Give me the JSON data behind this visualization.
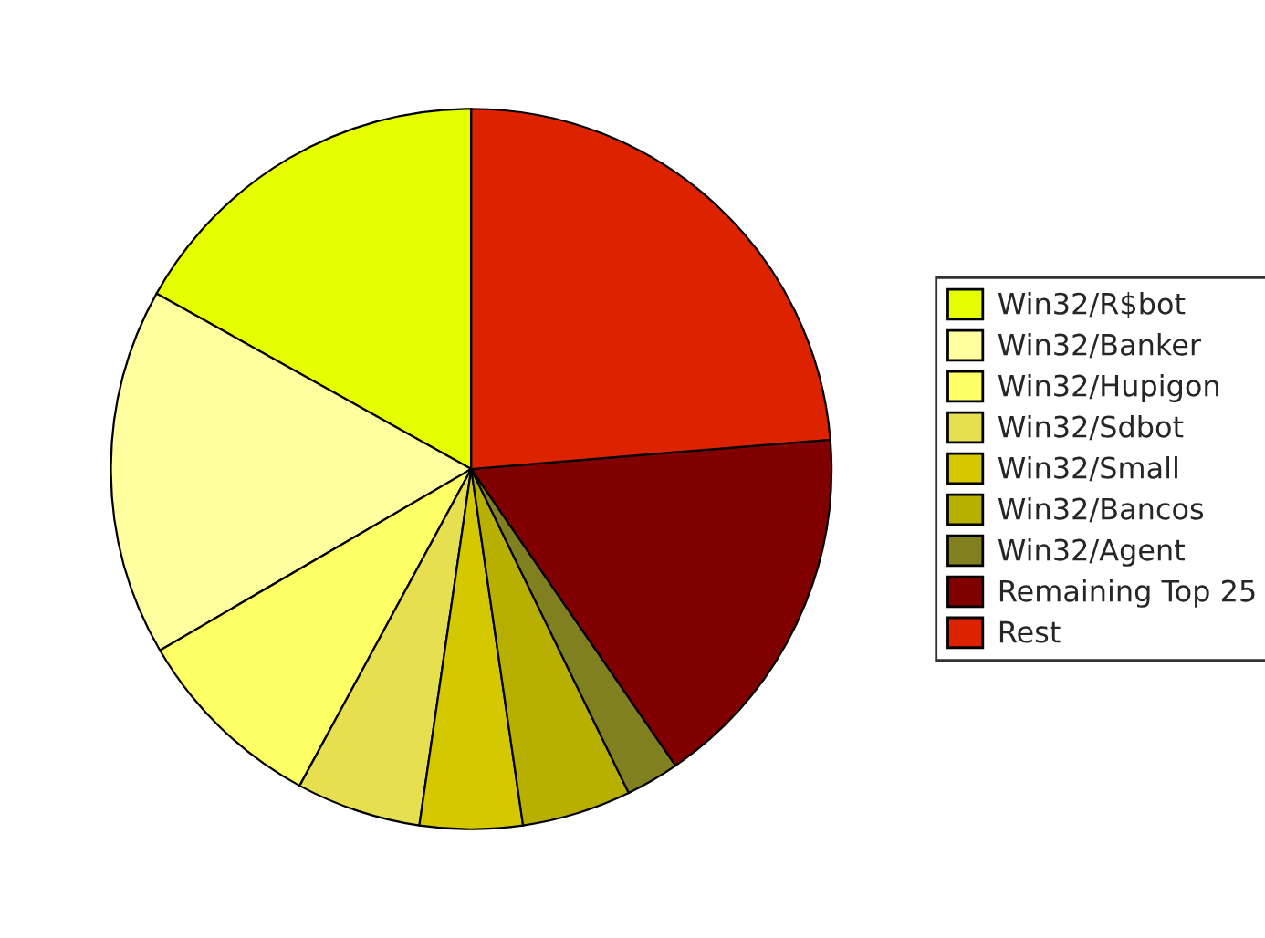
{
  "chart_data": {
    "type": "pie",
    "categories": [
      "Win32/R$bot",
      "Win32/Banker",
      "Win32/Hupigon",
      "Win32/Sdbot",
      "Win32/Small",
      "Win32/Bancos",
      "Win32/Agent",
      "Remaining Top 25",
      "Rest"
    ],
    "values": [
      16.9,
      16.5,
      8.7,
      5.6,
      4.6,
      4.9,
      2.4,
      16.7,
      23.7
    ],
    "colors": [
      "#e6ff00",
      "#ffffa0",
      "#ffff66",
      "#e6e050",
      "#d4c800",
      "#b8b000",
      "#808020",
      "#800000",
      "#dd2200"
    ],
    "legend": "right"
  }
}
